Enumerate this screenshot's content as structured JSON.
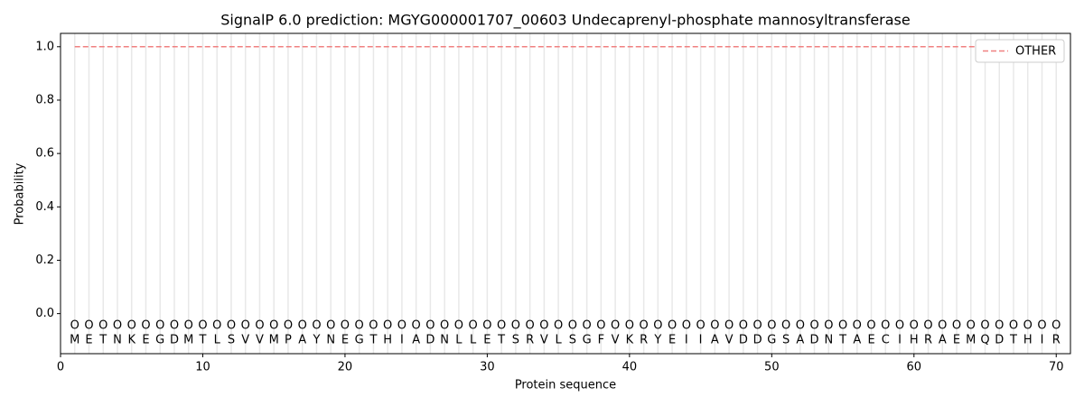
{
  "chart_data": {
    "type": "line",
    "title": "SignalP 6.0 prediction: MGYG000001707_00603 Undecaprenyl-phosphate mannosyltransferase",
    "x_label": "Protein sequence",
    "y_label": "Probability",
    "x": [
      1,
      2,
      3,
      4,
      5,
      6,
      7,
      8,
      9,
      10,
      11,
      12,
      13,
      14,
      15,
      16,
      17,
      18,
      19,
      20,
      21,
      22,
      23,
      24,
      25,
      26,
      27,
      28,
      29,
      30,
      31,
      32,
      33,
      34,
      35,
      36,
      37,
      38,
      39,
      40,
      41,
      42,
      43,
      44,
      45,
      46,
      47,
      48,
      49,
      50,
      51,
      52,
      53,
      54,
      55,
      56,
      57,
      58,
      59,
      60,
      61,
      62,
      63,
      64,
      65,
      66,
      67,
      68,
      69,
      70
    ],
    "residues": [
      "M",
      "E",
      "T",
      "N",
      "K",
      "E",
      "G",
      "D",
      "M",
      "T",
      "L",
      "S",
      "V",
      "V",
      "M",
      "P",
      "A",
      "Y",
      "N",
      "E",
      "G",
      "T",
      "H",
      "I",
      "A",
      "D",
      "N",
      "L",
      "L",
      "E",
      "T",
      "S",
      "R",
      "V",
      "L",
      "S",
      "G",
      "F",
      "V",
      "K",
      "R",
      "Y",
      "E",
      "I",
      "I",
      "A",
      "V",
      "D",
      "D",
      "G",
      "S",
      "A",
      "D",
      "N",
      "T",
      "A",
      "E",
      "C",
      "I",
      "H",
      "R",
      "A",
      "E",
      "M",
      "Q",
      "D",
      "T",
      "H",
      "I",
      "R"
    ],
    "predicted_labels": [
      "O",
      "O",
      "O",
      "O",
      "O",
      "O",
      "O",
      "O",
      "O",
      "O",
      "O",
      "O",
      "O",
      "O",
      "O",
      "O",
      "O",
      "O",
      "O",
      "O",
      "O",
      "O",
      "O",
      "O",
      "O",
      "O",
      "O",
      "O",
      "O",
      "O",
      "O",
      "O",
      "O",
      "O",
      "O",
      "O",
      "O",
      "O",
      "O",
      "O",
      "O",
      "O",
      "O",
      "O",
      "O",
      "O",
      "O",
      "O",
      "O",
      "O",
      "O",
      "O",
      "O",
      "O",
      "O",
      "O",
      "O",
      "O",
      "O",
      "O",
      "O",
      "O",
      "O",
      "O",
      "O",
      "O",
      "O",
      "O",
      "O",
      "O"
    ],
    "series": [
      {
        "name": "OTHER",
        "color": "#f08080",
        "dash": true,
        "values": [
          1,
          1,
          1,
          1,
          1,
          1,
          1,
          1,
          1,
          1,
          1,
          1,
          1,
          1,
          1,
          1,
          1,
          1,
          1,
          1,
          1,
          1,
          1,
          1,
          1,
          1,
          1,
          1,
          1,
          1,
          1,
          1,
          1,
          1,
          1,
          1,
          1,
          1,
          1,
          1,
          1,
          1,
          1,
          1,
          1,
          1,
          1,
          1,
          1,
          1,
          1,
          1,
          1,
          1,
          1,
          1,
          1,
          1,
          1,
          1,
          1,
          1,
          1,
          1,
          1,
          1,
          1,
          1,
          1,
          1
        ]
      }
    ],
    "xlim": [
      0,
      71
    ],
    "ylim": [
      -0.15,
      1.05
    ],
    "xticks": [
      0,
      10,
      20,
      30,
      40,
      50,
      60,
      70
    ],
    "yticks": [
      {
        "value": 0,
        "label": "0.0"
      },
      {
        "value": 0.2,
        "label": "0.2"
      },
      {
        "value": 0.4,
        "label": "0.4"
      },
      {
        "value": 0.6,
        "label": "0.6"
      },
      {
        "value": 0.8,
        "label": "0.8"
      },
      {
        "value": 1,
        "label": "1.0"
      }
    ],
    "grid": true,
    "legend": "upper right"
  }
}
